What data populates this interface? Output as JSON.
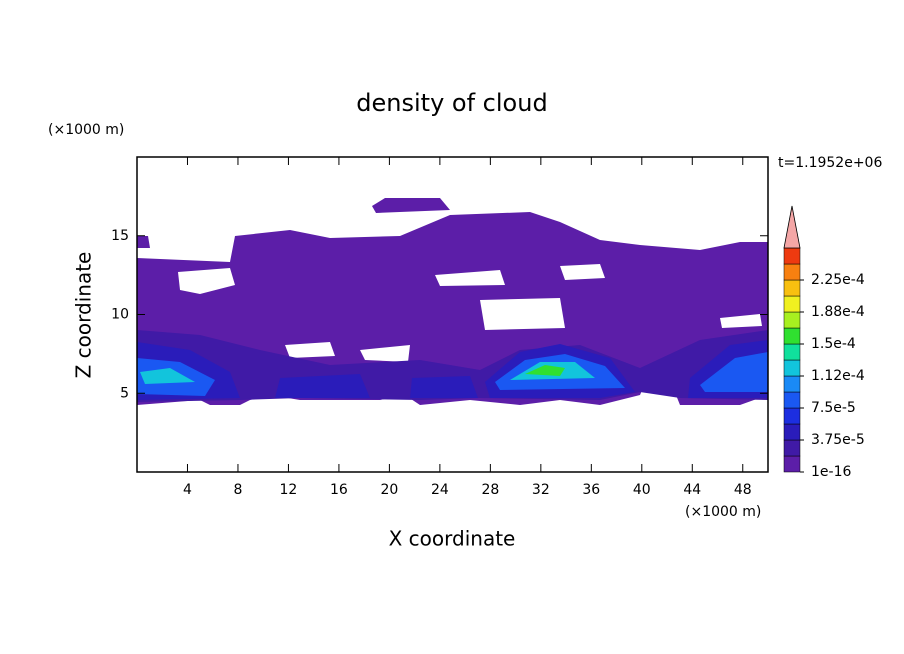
{
  "chart_data": {
    "type": "contour",
    "title": "density of cloud",
    "x_label": "X coordinate",
    "y_label": "Z coordinate",
    "x_unit": "(×1000 m)",
    "y_unit": "(×1000 m)",
    "time_label": "t=1.1952e+06",
    "xlim": [
      0,
      50
    ],
    "xticks": [
      4,
      8,
      12,
      16,
      20,
      24,
      28,
      32,
      36,
      40,
      44,
      48
    ],
    "ylim": [
      0,
      20
    ],
    "yticks": [
      5,
      10,
      15
    ],
    "colorbar": {
      "clim": [
        1e-16,
        0.0002625
      ],
      "colors": [
        "#5c1ea8",
        "#401aa6",
        "#2a1cba",
        "#1c2ee0",
        "#1a58f2",
        "#1a8af6",
        "#12c4dc",
        "#10e09c",
        "#30e030",
        "#a8f020",
        "#f0f020",
        "#f8c010",
        "#f88010",
        "#ee3a10"
      ],
      "extend_color": "#f4a6a6",
      "ticks": [
        1e-16,
        {
          "value": 3.75e-05,
          "label": "3.75e-5"
        },
        {
          "value": 7.5e-05,
          "label": "7.5e-5"
        },
        {
          "value": 0.0001125,
          "label": "1.12e-4"
        },
        {
          "value": 0.00015,
          "label": "1.5e-4"
        },
        {
          "value": 0.0001875,
          "label": "1.88e-4"
        },
        {
          "value": 0.000225,
          "label": "2.25e-4"
        }
      ]
    }
  }
}
